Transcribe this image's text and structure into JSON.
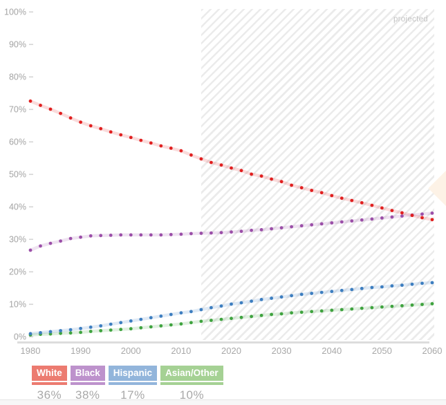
{
  "chart_data": {
    "type": "scatter",
    "title": "",
    "xlabel": "",
    "ylabel": "",
    "xlim": [
      1980,
      2060
    ],
    "ylim": [
      0,
      100
    ],
    "grid": false,
    "x_ticks": [
      "1980",
      "1990",
      "2000",
      "2010",
      "2020",
      "2030",
      "2040",
      "2050",
      "2060"
    ],
    "y_ticks": [
      "0%",
      "10%",
      "20%",
      "30%",
      "40%",
      "50%",
      "60%",
      "70%",
      "80%",
      "90%",
      "100%"
    ],
    "x": [
      1980,
      1982,
      1984,
      1986,
      1988,
      1990,
      1992,
      1994,
      1996,
      1998,
      2000,
      2002,
      2004,
      2006,
      2008,
      2010,
      2012,
      2014,
      2016,
      2018,
      2020,
      2022,
      2024,
      2026,
      2028,
      2030,
      2032,
      2034,
      2036,
      2038,
      2040,
      2042,
      2044,
      2046,
      2048,
      2050,
      2052,
      2054,
      2056,
      2058,
      2060
    ],
    "series": [
      {
        "name": "White",
        "color": "#e02020",
        "legend_color": "#ec7b70",
        "legend_value": "36%",
        "values": [
          72.5,
          71.2,
          70.0,
          68.7,
          67.3,
          66.0,
          64.9,
          64.0,
          63.0,
          62.1,
          61.3,
          60.4,
          59.6,
          58.7,
          58.0,
          57.2,
          55.9,
          54.7,
          53.6,
          52.8,
          51.9,
          51.1,
          50.0,
          49.4,
          48.5,
          47.7,
          46.6,
          45.8,
          45.0,
          44.3,
          43.4,
          42.6,
          41.9,
          41.2,
          40.4,
          39.6,
          38.8,
          38.1,
          37.3,
          36.6,
          36.0
        ]
      },
      {
        "name": "Black",
        "color": "#9b4fa8",
        "legend_color": "#bd92cc",
        "legend_value": "38%",
        "values": [
          26.6,
          27.9,
          28.7,
          29.4,
          30.2,
          30.6,
          31.0,
          31.1,
          31.2,
          31.3,
          31.3,
          31.3,
          31.3,
          31.3,
          31.4,
          31.5,
          31.7,
          31.8,
          31.9,
          32.0,
          32.2,
          32.4,
          32.7,
          32.9,
          33.2,
          33.5,
          33.8,
          34.1,
          34.4,
          34.7,
          35.0,
          35.3,
          35.6,
          35.9,
          36.2,
          36.5,
          36.8,
          37.1,
          37.4,
          37.7,
          38.0
        ]
      },
      {
        "name": "Hispanic",
        "color": "#3d7ec0",
        "legend_color": "#92b5db",
        "legend_value": "17%",
        "values": [
          0.9,
          1.2,
          1.5,
          1.8,
          2.1,
          2.5,
          2.9,
          3.3,
          3.8,
          4.3,
          4.8,
          5.3,
          5.8,
          6.3,
          6.8,
          7.3,
          7.7,
          8.3,
          8.9,
          9.4,
          10.0,
          10.4,
          10.9,
          11.4,
          11.8,
          12.2,
          12.6,
          13.0,
          13.3,
          13.6,
          13.9,
          14.2,
          14.5,
          14.8,
          15.1,
          15.3,
          15.6,
          15.8,
          16.1,
          16.4,
          16.6
        ]
      },
      {
        "name": "Asian/Other",
        "color": "#3fa33f",
        "legend_color": "#a5d194",
        "legend_value": "10%",
        "values": [
          0.5,
          0.7,
          0.8,
          1.0,
          1.1,
          1.3,
          1.6,
          1.8,
          2.0,
          2.2,
          2.4,
          2.7,
          3.0,
          3.3,
          3.6,
          3.9,
          4.3,
          4.7,
          5.0,
          5.3,
          5.6,
          5.9,
          6.2,
          6.5,
          6.8,
          7.0,
          7.3,
          7.5,
          7.7,
          7.9,
          8.1,
          8.3,
          8.5,
          8.7,
          8.9,
          9.1,
          9.3,
          9.5,
          9.7,
          9.9,
          10.1
        ]
      }
    ],
    "projected": {
      "label": "projected",
      "start_year": 2014,
      "end_year": 2060
    }
  }
}
